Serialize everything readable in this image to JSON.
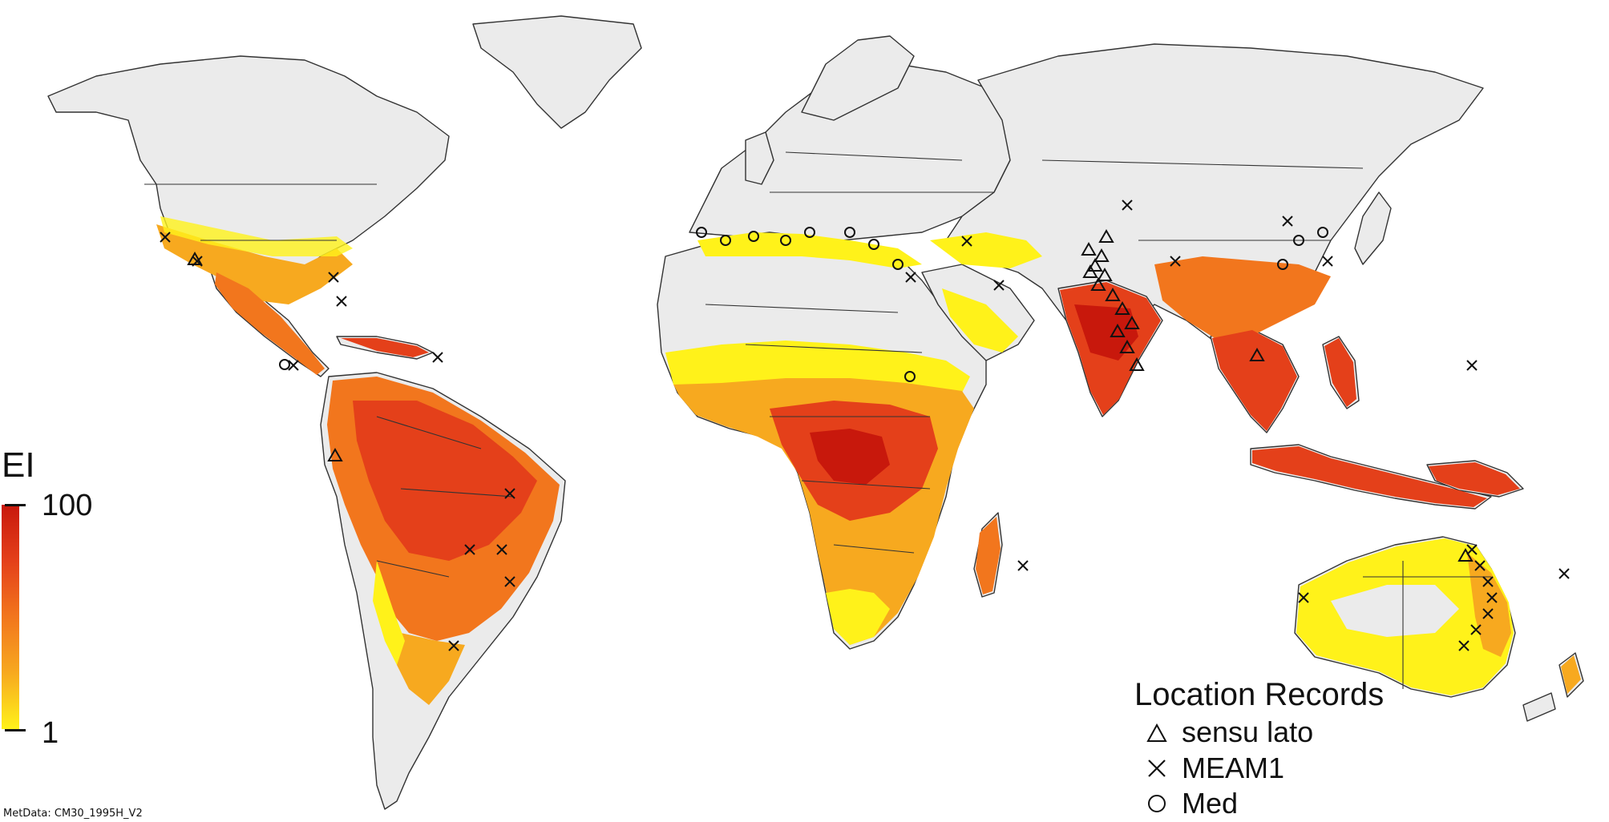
{
  "map": {
    "colorscale": {
      "title": "EI",
      "max_label": "100",
      "min_label": "1",
      "colors": [
        "#c8180c",
        "#e4401a",
        "#f2761d",
        "#f7a91f",
        "#fff21a"
      ]
    },
    "legend": {
      "title": "Location Records",
      "items": [
        {
          "symbol": "triangle",
          "label": "sensu lato"
        },
        {
          "symbol": "cross",
          "label": "MEAM1"
        },
        {
          "symbol": "circle",
          "label": "Med"
        }
      ]
    },
    "metadata": "MetData: CM30_1995H_V2",
    "land_color": "#ebebeb"
  }
}
